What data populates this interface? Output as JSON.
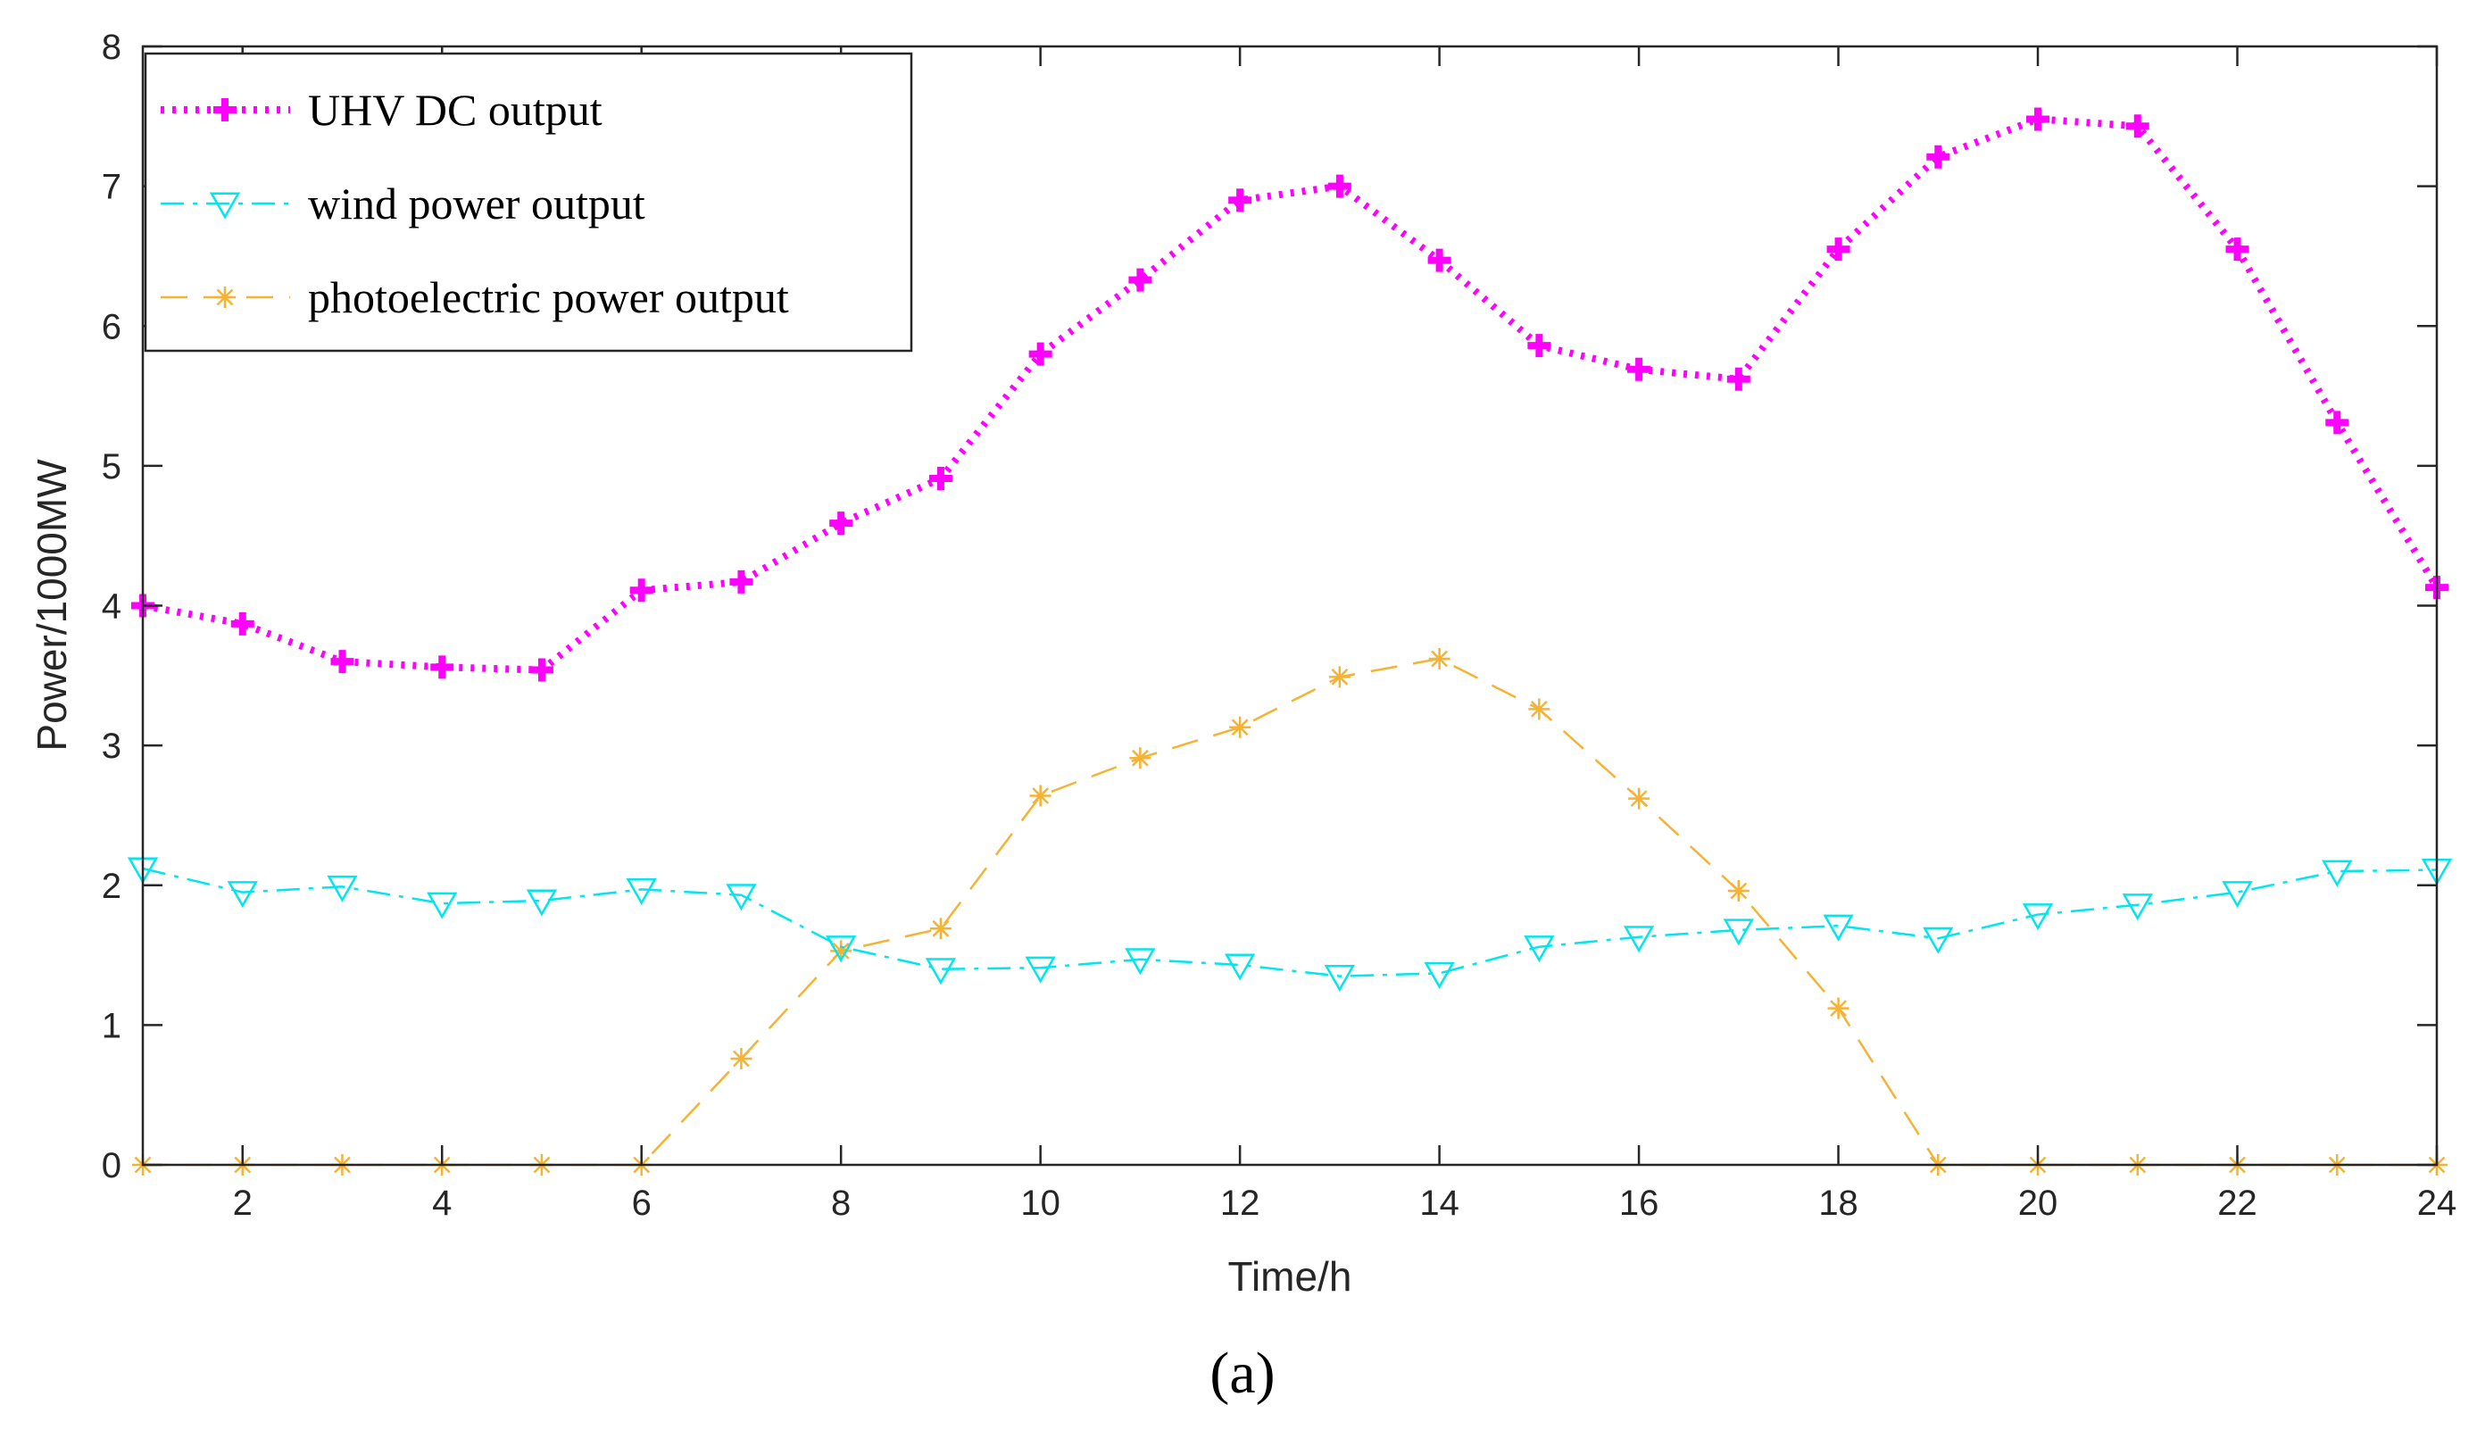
{
  "chart_data": {
    "type": "line",
    "xlabel": "Time/h",
    "ylabel": "Power/1000MW",
    "xlim": [
      1,
      24
    ],
    "ylim": [
      0,
      8
    ],
    "xticks": [
      2,
      4,
      6,
      8,
      10,
      12,
      14,
      16,
      18,
      20,
      22,
      24
    ],
    "yticks": [
      0,
      1,
      2,
      3,
      4,
      5,
      6,
      7,
      8
    ],
    "grid": false,
    "legend_position": "top-left",
    "caption": "(a)",
    "x": [
      1,
      2,
      3,
      4,
      5,
      6,
      7,
      8,
      9,
      10,
      11,
      12,
      13,
      14,
      15,
      16,
      17,
      18,
      19,
      20,
      21,
      22,
      23,
      24
    ],
    "series": [
      {
        "name": "UHV DC output",
        "color": "#ff00ff",
        "style": "dotted",
        "marker": "plus",
        "values": [
          4.0,
          3.87,
          3.6,
          3.56,
          3.54,
          4.11,
          4.17,
          4.59,
          4.91,
          5.8,
          6.33,
          6.9,
          7.0,
          6.47,
          5.86,
          5.69,
          5.62,
          6.55,
          7.21,
          7.48,
          7.43,
          6.55,
          5.31,
          4.13
        ]
      },
      {
        "name": "wind power output",
        "color": "#00e5ee",
        "style": "dashdot",
        "marker": "triangle-down",
        "values": [
          2.12,
          1.95,
          1.99,
          1.87,
          1.89,
          1.97,
          1.93,
          1.56,
          1.4,
          1.41,
          1.47,
          1.43,
          1.35,
          1.37,
          1.56,
          1.63,
          1.68,
          1.71,
          1.62,
          1.79,
          1.86,
          1.95,
          2.1,
          2.11
        ]
      },
      {
        "name": "photoelectric power output",
        "color": "#f5b335",
        "style": "dashed",
        "marker": "asterisk",
        "values": [
          0,
          0,
          0,
          0,
          0,
          0,
          0.76,
          1.53,
          1.69,
          2.64,
          2.91,
          3.13,
          3.49,
          3.62,
          3.26,
          2.62,
          1.96,
          1.12,
          0,
          0,
          0,
          0,
          0,
          0
        ]
      }
    ]
  }
}
